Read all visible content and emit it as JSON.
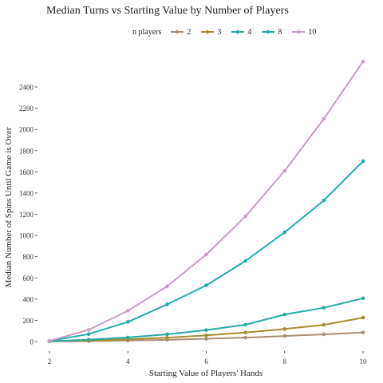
{
  "chart_data": {
    "type": "line",
    "title": "Median Turns vs Starting Value by Number of Players",
    "xlabel": "Starting Value of Players' Hands",
    "ylabel": "Median Number of Spins Until Game is Over",
    "x": [
      2,
      3,
      4,
      5,
      6,
      7,
      8,
      9,
      10
    ],
    "xticks": [
      "2",
      "4",
      "6",
      "8",
      "10"
    ],
    "yticks": [
      "0",
      "200",
      "400",
      "600",
      "800",
      "1000",
      "1200",
      "1400",
      "1600",
      "1800",
      "2000",
      "2200",
      "2400"
    ],
    "xlim": [
      2,
      10
    ],
    "ylim": [
      0,
      2400
    ],
    "grid": false,
    "legend_title": "n players",
    "legend_position": "top",
    "series": [
      {
        "name": "2",
        "color": "#a98f75",
        "values": [
          1,
          4,
          9,
          16,
          26,
          37,
          52,
          68,
          85
        ]
      },
      {
        "name": "3",
        "color": "#a68b2f",
        "values": [
          2,
          8,
          20,
          36,
          58,
          85,
          118,
          157,
          225
        ]
      },
      {
        "name": "4",
        "color": "#26a9a3",
        "values": [
          3,
          17,
          38,
          68,
          108,
          158,
          255,
          318,
          408
        ]
      },
      {
        "name": "8",
        "color": "#1eacb0",
        "values": [
          5,
          70,
          185,
          350,
          530,
          760,
          1030,
          1330,
          1700
        ]
      },
      {
        "name": "10",
        "color": "#c79cc8",
        "values": [
          6,
          110,
          290,
          520,
          820,
          1180,
          1610,
          2100,
          2640
        ]
      }
    ]
  }
}
